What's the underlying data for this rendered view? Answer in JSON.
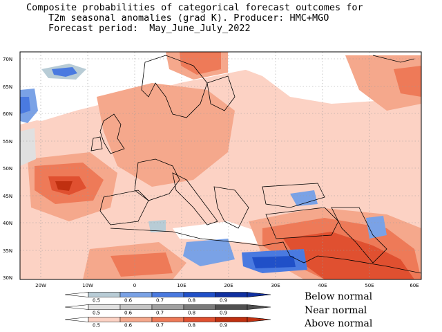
{
  "title": {
    "line1": "Composite probabilities of categorical forecast outcomes for",
    "line2": "T2m seasonal anomalies (grad K). Producer: HMC+MGO",
    "line3": "Forecast period:  May_June_July_2022"
  },
  "map": {
    "lat_labels": [
      "70N",
      "65N",
      "60N",
      "55N",
      "50N",
      "45N",
      "40N",
      "35N",
      "30N"
    ],
    "lon_labels": [
      "20W",
      "10W",
      "0",
      "10E",
      "20E",
      "30E",
      "40E",
      "50E",
      "60E"
    ],
    "lon_range": [
      -25,
      60
    ],
    "lat_range": [
      29.5,
      71
    ]
  },
  "legend": {
    "scale_values": [
      "0.5",
      "0.6",
      "0.7",
      "0.8",
      "0.9"
    ],
    "below_label": "Below normal",
    "near_label": "Near normal",
    "above_label": "Above normal",
    "below_colors": [
      "#b8ccd6",
      "#7aa2e6",
      "#4a7ae0",
      "#2050c8",
      "#1030a0"
    ],
    "near_colors": [
      "#e0e0e0",
      "#c4c4c4",
      "#a0a0a0",
      "#7a7a7a",
      "#505050"
    ],
    "above_colors": [
      "#fcd2c4",
      "#f5a88c",
      "#ee7a58",
      "#e05030",
      "#c03010"
    ]
  }
}
